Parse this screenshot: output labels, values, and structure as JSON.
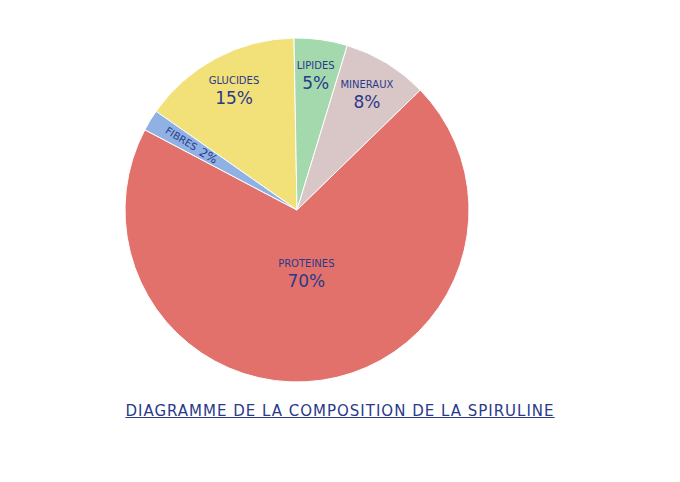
{
  "chart_data": {
    "type": "pie",
    "title": "DIAGRAMME DE LA COMPOSITION DE LA SPIRULINE",
    "categories": [
      "GLUCIDES",
      "LIPIDES",
      "MINERAUX",
      "PROTEINES",
      "FIBRES"
    ],
    "values": [
      15,
      5,
      8,
      70,
      2
    ],
    "value_labels": [
      "15%",
      "5%",
      "8%",
      "70%",
      "2%"
    ],
    "colors": [
      "#f2e079",
      "#a3d9ad",
      "#d9c6c6",
      "#e2716b",
      "#8fb1e3"
    ],
    "data_labels": true
  }
}
